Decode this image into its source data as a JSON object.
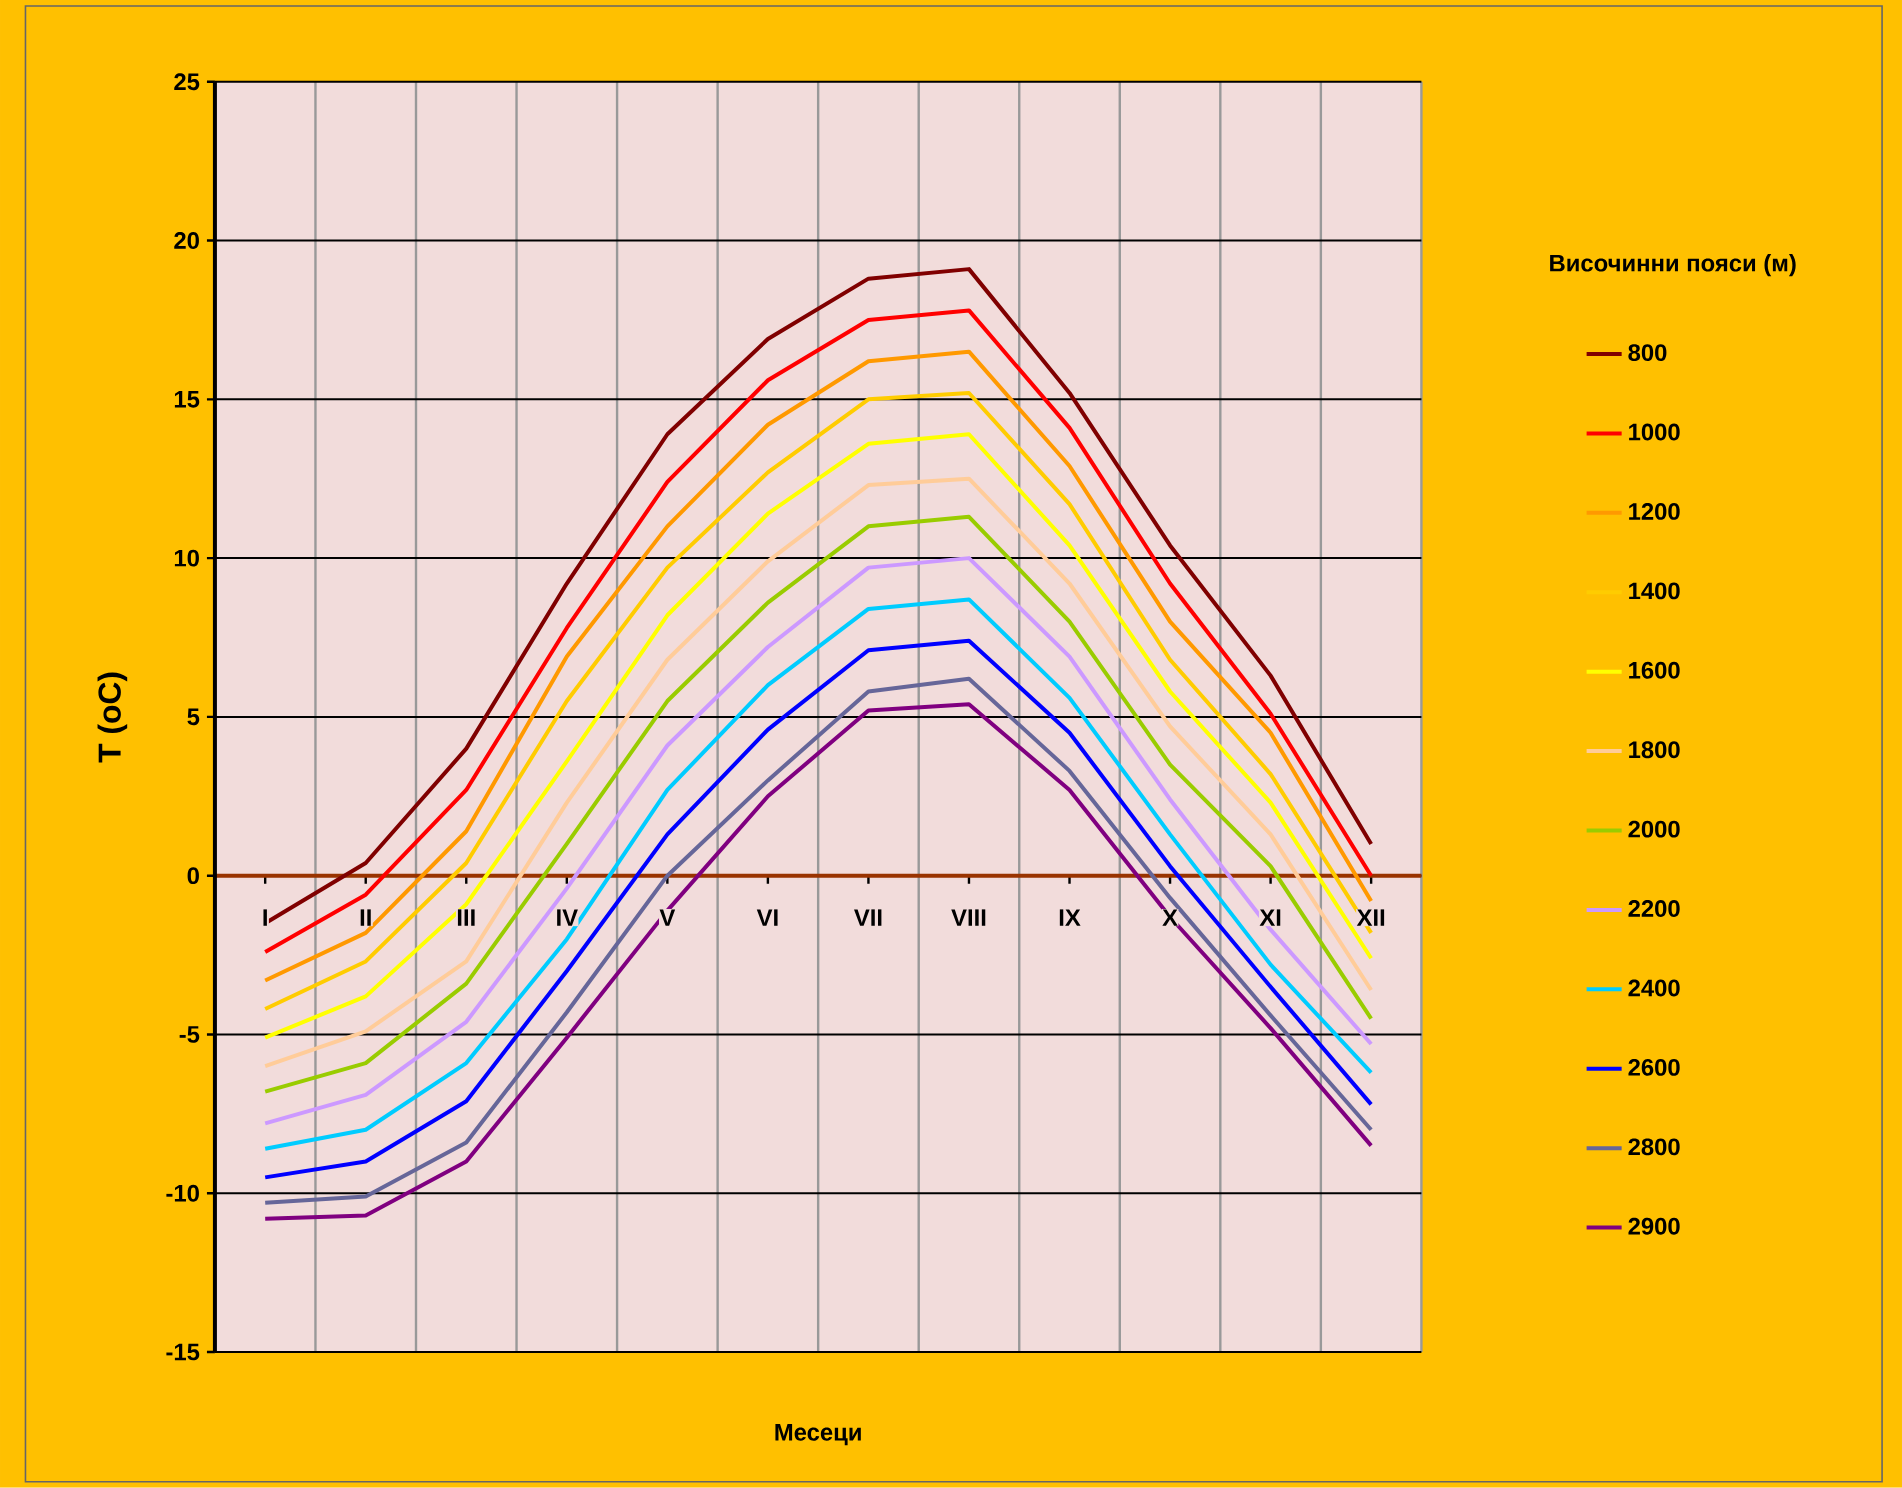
{
  "chart_data": {
    "type": "line",
    "xlabel": "Месеци",
    "ylabel": "T (oC)",
    "legend_title": "Височинни пояси (м)",
    "categories": [
      "I",
      "II",
      "III",
      "IV",
      "V",
      "VI",
      "VII",
      "VIII",
      "IX",
      "X",
      "XI",
      "XII"
    ],
    "ylim": [
      -15,
      25
    ],
    "yticks": [
      -15,
      -10,
      -5,
      0,
      5,
      10,
      15,
      20,
      25
    ],
    "grid": true,
    "legend": "right",
    "marker": "none",
    "line_style": "solid",
    "series": [
      {
        "name": "800",
        "color": "#800000",
        "values": [
          -1.5,
          0.4,
          4.0,
          9.2,
          13.9,
          16.9,
          18.8,
          19.1,
          15.2,
          10.4,
          6.3,
          1.0
        ]
      },
      {
        "name": "1000",
        "color": "#ff0000",
        "values": [
          -2.4,
          -0.6,
          2.7,
          7.8,
          12.4,
          15.6,
          17.5,
          17.8,
          14.1,
          9.2,
          5.1,
          0.0
        ]
      },
      {
        "name": "1200",
        "color": "#ff9900",
        "values": [
          -3.3,
          -1.8,
          1.4,
          6.9,
          11.0,
          14.2,
          16.2,
          16.5,
          12.9,
          8.0,
          4.5,
          -0.8
        ]
      },
      {
        "name": "1400",
        "color": "#ffcc00",
        "values": [
          -4.2,
          -2.7,
          0.4,
          5.5,
          9.7,
          12.7,
          15.0,
          15.2,
          11.7,
          6.8,
          3.2,
          -1.8
        ]
      },
      {
        "name": "1600",
        "color": "#ffff00",
        "values": [
          -5.1,
          -3.8,
          -0.9,
          3.6,
          8.2,
          11.4,
          13.6,
          13.9,
          10.4,
          5.8,
          2.3,
          -2.6
        ]
      },
      {
        "name": "1800",
        "color": "#ffcc99",
        "values": [
          -6.0,
          -4.9,
          -2.7,
          2.3,
          6.8,
          9.9,
          12.3,
          12.5,
          9.2,
          4.7,
          1.3,
          -3.6
        ]
      },
      {
        "name": "2000",
        "color": "#99cc00",
        "values": [
          -6.8,
          -5.9,
          -3.4,
          1.0,
          5.5,
          8.6,
          11.0,
          11.3,
          8.0,
          3.5,
          0.3,
          -4.5
        ]
      },
      {
        "name": "2200",
        "color": "#cc99ff",
        "values": [
          -7.8,
          -6.9,
          -4.6,
          -0.4,
          4.1,
          7.2,
          9.7,
          10.0,
          6.9,
          2.4,
          -1.7,
          -5.3
        ]
      },
      {
        "name": "2400",
        "color": "#00ccff",
        "values": [
          -8.6,
          -8.0,
          -5.9,
          -2.0,
          2.7,
          6.0,
          8.4,
          8.7,
          5.6,
          1.3,
          -2.8,
          -6.2
        ]
      },
      {
        "name": "2600",
        "color": "#0000ff",
        "values": [
          -9.5,
          -9.0,
          -7.1,
          -3.0,
          1.3,
          4.6,
          7.1,
          7.4,
          4.5,
          0.3,
          -3.5,
          -7.2
        ]
      },
      {
        "name": "2800",
        "color": "#666699",
        "values": [
          -10.3,
          -10.1,
          -8.4,
          -4.3,
          0.0,
          3.0,
          5.8,
          6.2,
          3.3,
          -0.7,
          -4.4,
          -8.0
        ]
      },
      {
        "name": "2900",
        "color": "#800080",
        "values": [
          -10.8,
          -10.7,
          -9.0,
          -5.1,
          -1.1,
          2.5,
          5.2,
          5.4,
          2.7,
          -1.3,
          -4.8,
          -8.5
        ]
      }
    ]
  }
}
